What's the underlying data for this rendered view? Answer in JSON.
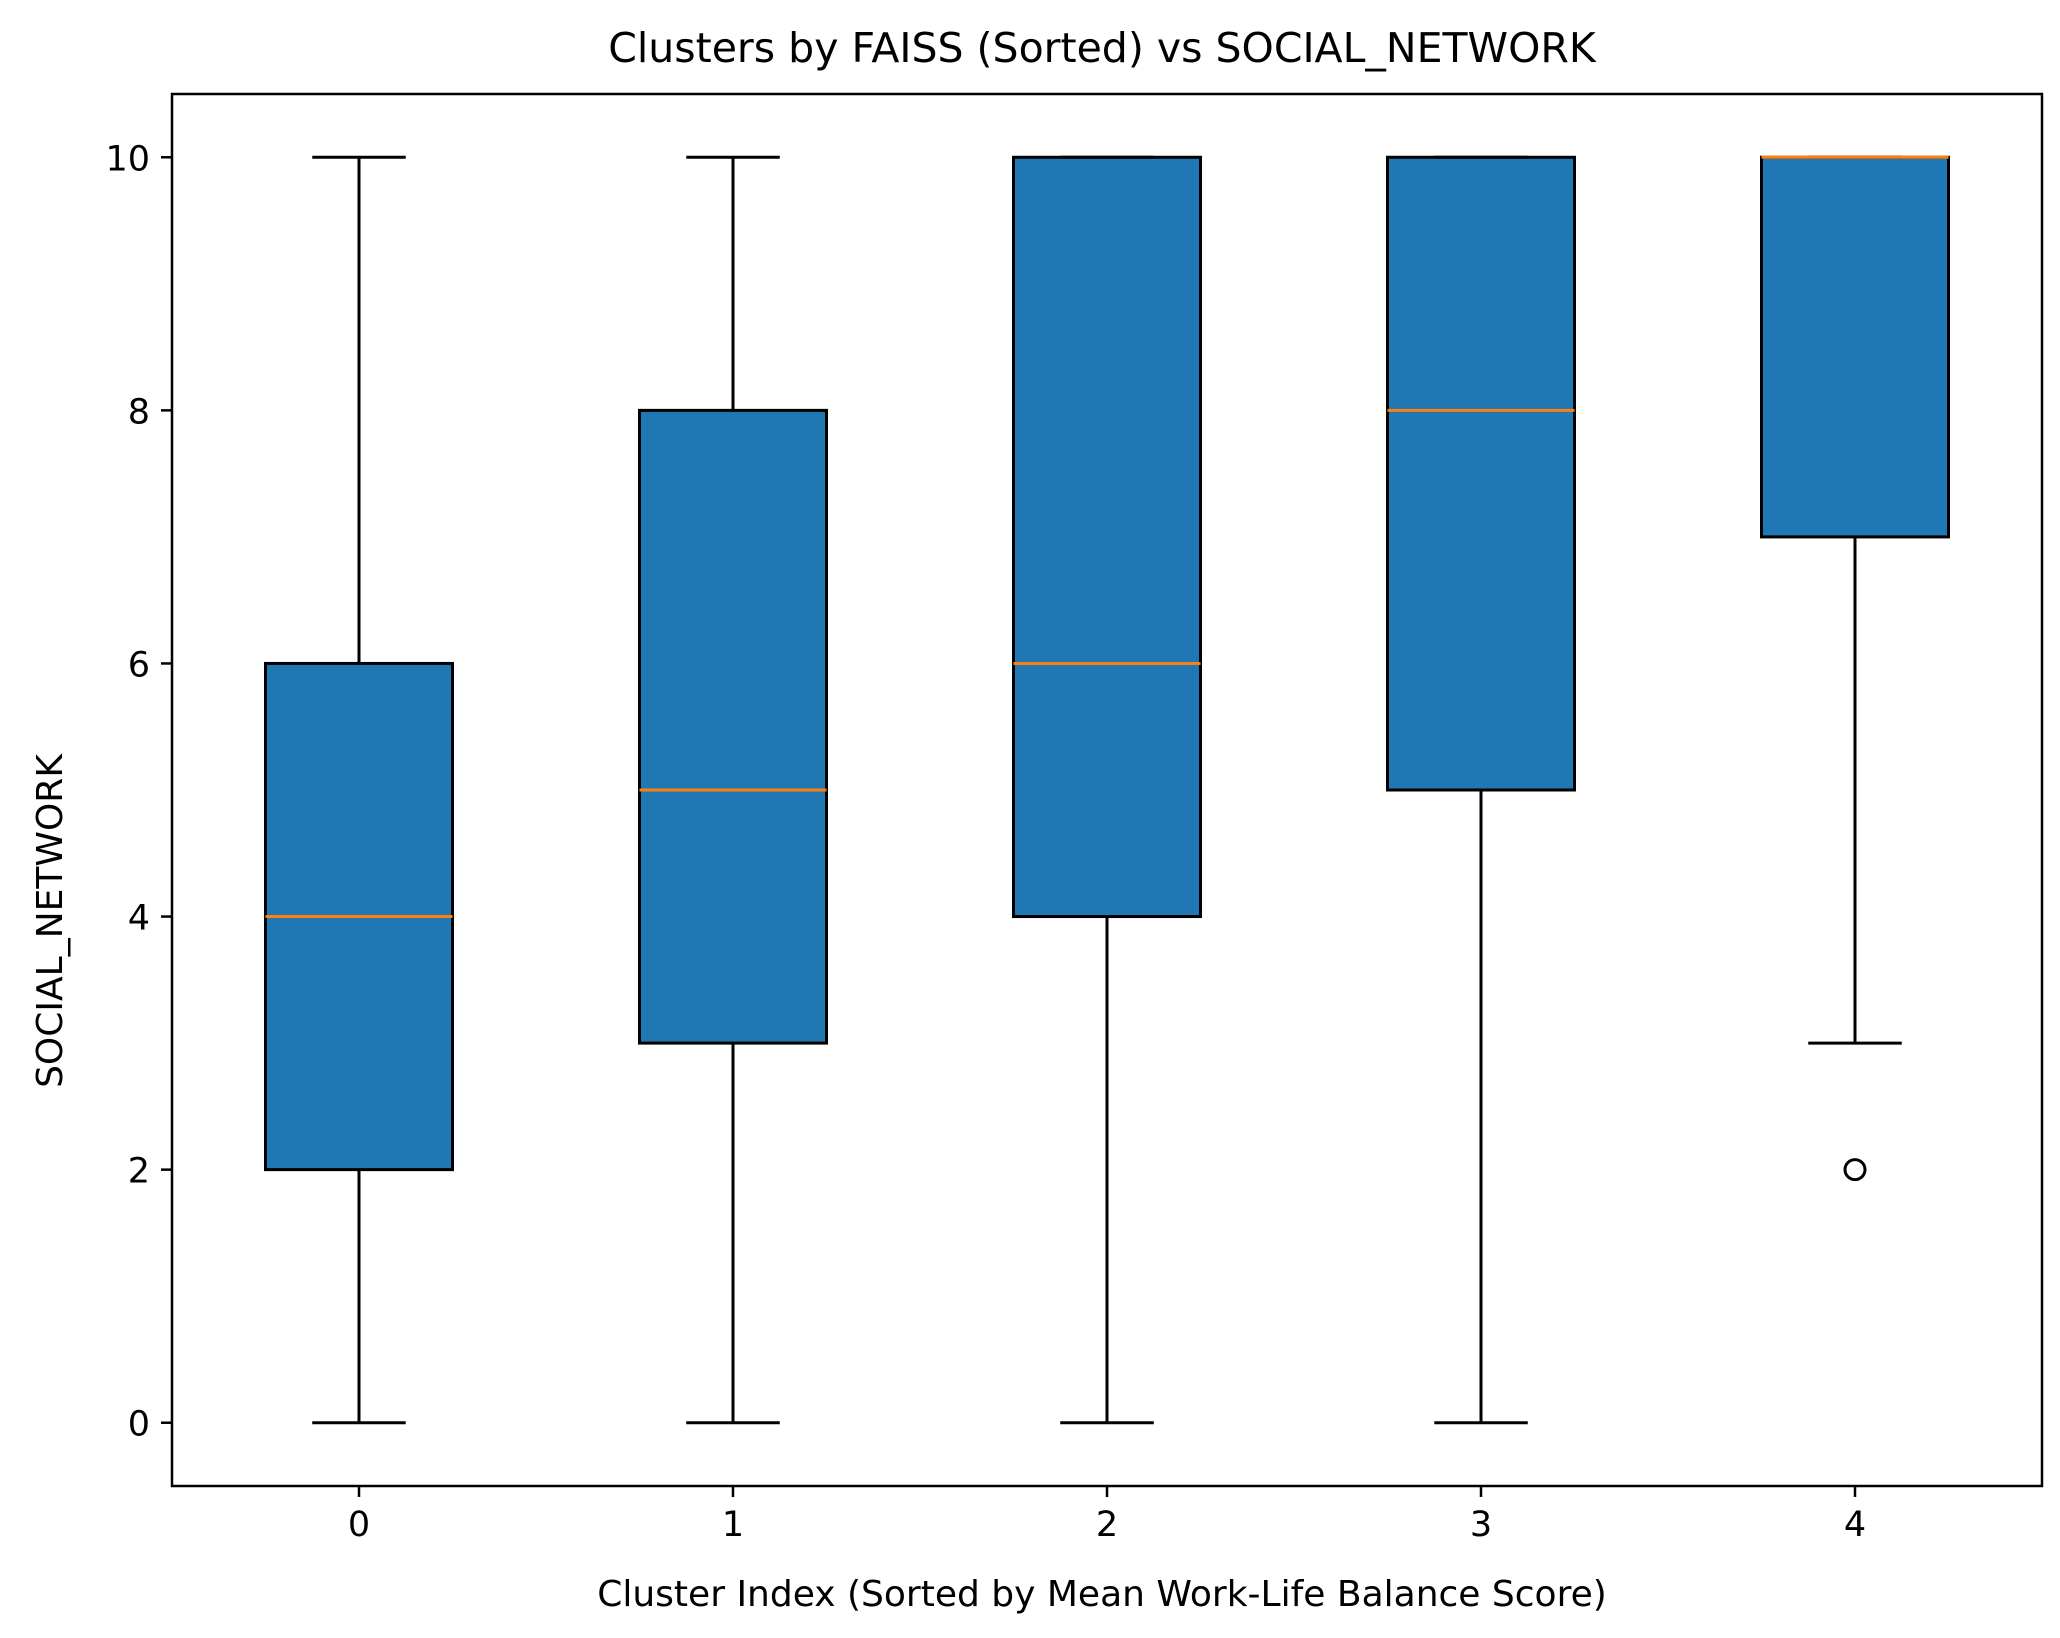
{
  "chart_data": {
    "type": "box",
    "title": "Clusters by FAISS (Sorted) vs SOCIAL_NETWORK",
    "xlabel": "Cluster Index (Sorted by Mean Work-Life Balance Score)",
    "ylabel": "SOCIAL_NETWORK",
    "categories": [
      "0",
      "1",
      "2",
      "3",
      "4"
    ],
    "ylim": [
      -0.5,
      10.5
    ],
    "yticks": [
      "0",
      "2",
      "4",
      "6",
      "8",
      "10"
    ],
    "grid": false,
    "box_color": "#1f77b4",
    "median_color": "#ff7f0e",
    "edge_color": "#000000",
    "boxes": [
      {
        "category": "0",
        "whisker_low": 0,
        "q1": 2,
        "median": 4,
        "q3": 6,
        "whisker_high": 10,
        "outliers": []
      },
      {
        "category": "1",
        "whisker_low": 0,
        "q1": 3,
        "median": 5,
        "q3": 8,
        "whisker_high": 10,
        "outliers": []
      },
      {
        "category": "2",
        "whisker_low": 0,
        "q1": 4,
        "median": 6,
        "q3": 10,
        "whisker_high": 10,
        "outliers": []
      },
      {
        "category": "3",
        "whisker_low": 0,
        "q1": 5,
        "median": 8,
        "q3": 10,
        "whisker_high": 10,
        "outliers": []
      },
      {
        "category": "4",
        "whisker_low": 3,
        "q1": 7,
        "median": 10,
        "q3": 10,
        "whisker_high": 10,
        "outliers": [
          2
        ]
      }
    ]
  }
}
